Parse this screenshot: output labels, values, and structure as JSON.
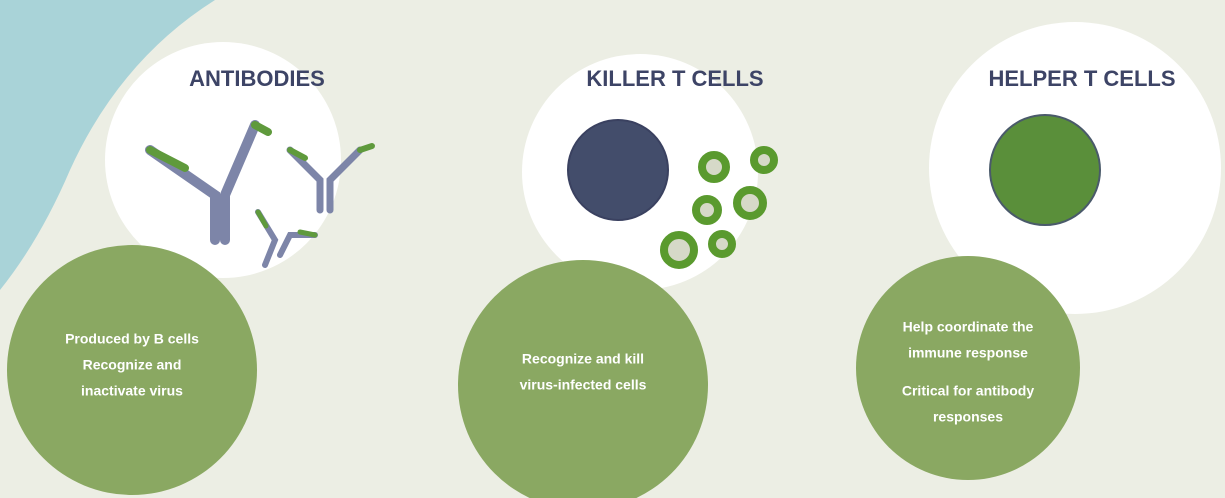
{
  "panels": [
    {
      "title": "ANTIBODIES",
      "paragraphs": [
        [
          "Produced by B cells",
          "Recognize and",
          "inactivate virus"
        ]
      ]
    },
    {
      "title": "KILLER T CELLS",
      "paragraphs": [
        [
          "Recognize and kill",
          "virus-infected cells"
        ]
      ]
    },
    {
      "title": "HELPER T CELLS",
      "paragraphs": [
        [
          "Help coordinate the",
          "immune response"
        ],
        [
          "Critical for antibody",
          "responses"
        ]
      ]
    }
  ]
}
